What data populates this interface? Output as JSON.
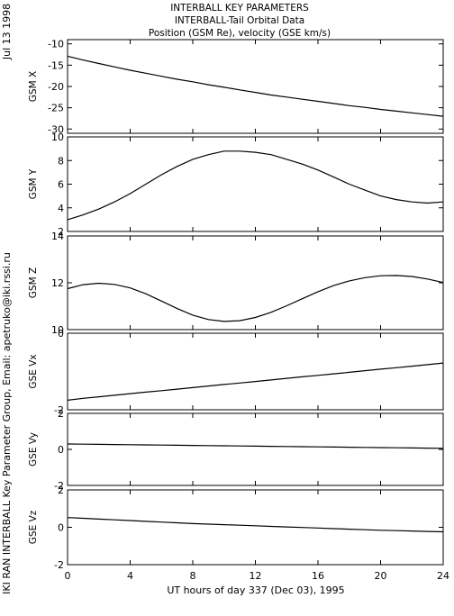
{
  "header": {
    "date": "Jul 13 1998",
    "title_line1": "INTERBALL KEY PARAMETERS",
    "title_line2": "INTERBALL-Tail Orbital Data",
    "title_line3": "Position (GSM Re), velocity (GSE km/s)",
    "credit": "IKI RAN INTERBALL Key Parameter Group, Email: apetruko@iki.rssi.ru"
  },
  "colors": {
    "line": "#000000",
    "background": "#ffffff"
  },
  "chart_data": {
    "type": "line",
    "xlabel": "UT hours of day 337 (Dec 03), 1995",
    "xlim": [
      0,
      24
    ],
    "xticks": [
      0,
      4,
      8,
      12,
      16,
      20,
      24
    ],
    "x": [
      0,
      1,
      2,
      3,
      4,
      5,
      6,
      7,
      8,
      9,
      10,
      11,
      12,
      13,
      14,
      15,
      16,
      17,
      18,
      19,
      20,
      21,
      22,
      23,
      24
    ],
    "panels": [
      {
        "ylabel": "GSM X",
        "ylim": [
          -31,
          -9
        ],
        "yticks": [
          -10,
          -15,
          -20,
          -25,
          -30
        ],
        "values": [
          -12.9,
          -13.8,
          -14.6,
          -15.4,
          -16.2,
          -16.9,
          -17.6,
          -18.3,
          -18.9,
          -19.6,
          -20.2,
          -20.8,
          -21.4,
          -22.0,
          -22.5,
          -23.0,
          -23.5,
          -24.0,
          -24.5,
          -24.9,
          -25.4,
          -25.8,
          -26.2,
          -26.6,
          -27.0
        ]
      },
      {
        "ylabel": "GSM Y",
        "ylim": [
          2,
          10
        ],
        "yticks": [
          2,
          4,
          6,
          8,
          10
        ],
        "values": [
          3.0,
          3.4,
          3.9,
          4.5,
          5.2,
          6.0,
          6.8,
          7.5,
          8.1,
          8.5,
          8.8,
          8.8,
          8.7,
          8.5,
          8.1,
          7.7,
          7.2,
          6.6,
          6.0,
          5.5,
          5.0,
          4.7,
          4.5,
          4.4,
          4.5
        ]
      },
      {
        "ylabel": "GSM Z",
        "ylim": [
          10,
          14
        ],
        "yticks": [
          10,
          12,
          14
        ],
        "values": [
          11.75,
          11.92,
          11.98,
          11.93,
          11.78,
          11.53,
          11.22,
          10.9,
          10.62,
          10.43,
          10.35,
          10.38,
          10.52,
          10.74,
          11.02,
          11.32,
          11.62,
          11.88,
          12.08,
          12.22,
          12.3,
          12.31,
          12.27,
          12.16,
          12.01
        ]
      },
      {
        "ylabel": "GSE Vx",
        "ylim": [
          -2,
          0
        ],
        "yticks": [
          0,
          -2
        ],
        "values": [
          -1.75,
          -1.7,
          -1.66,
          -1.62,
          -1.58,
          -1.54,
          -1.5,
          -1.46,
          -1.42,
          -1.38,
          -1.34,
          -1.3,
          -1.26,
          -1.22,
          -1.18,
          -1.14,
          -1.1,
          -1.06,
          -1.02,
          -0.98,
          -0.94,
          -0.9,
          -0.86,
          -0.82,
          -0.78
        ]
      },
      {
        "ylabel": "GSE Vy",
        "ylim": [
          -2,
          2
        ],
        "yticks": [
          2,
          0,
          -2
        ],
        "values": [
          0.3,
          0.29,
          0.28,
          0.27,
          0.26,
          0.25,
          0.24,
          0.23,
          0.22,
          0.21,
          0.2,
          0.19,
          0.18,
          0.17,
          0.16,
          0.15,
          0.14,
          0.13,
          0.12,
          0.11,
          0.1,
          0.09,
          0.08,
          0.07,
          0.06
        ]
      },
      {
        "ylabel": "GSE Vz",
        "ylim": [
          -2,
          2
        ],
        "yticks": [
          2,
          0,
          -2
        ],
        "values": [
          0.52,
          0.48,
          0.44,
          0.4,
          0.36,
          0.32,
          0.28,
          0.24,
          0.2,
          0.17,
          0.14,
          0.11,
          0.08,
          0.05,
          0.02,
          -0.01,
          -0.04,
          -0.07,
          -0.1,
          -0.13,
          -0.16,
          -0.18,
          -0.2,
          -0.22,
          -0.24
        ]
      }
    ]
  }
}
